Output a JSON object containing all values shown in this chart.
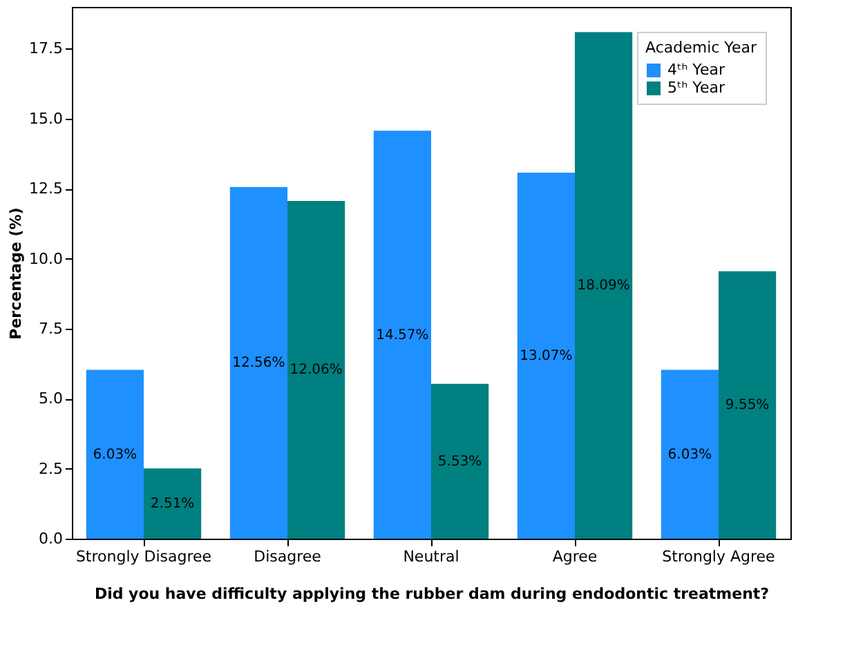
{
  "chart_data": {
    "type": "bar",
    "xlabel": "Did you have difficulty applying the rubber dam during endodontic treatment?",
    "ylabel": "Percentage (%)",
    "legend_title": "Academic Year",
    "legend": "top right",
    "grid": false,
    "categories": [
      "Strongly Disagree",
      "Disagree",
      "Neutral",
      "Agree",
      "Strongly Agree"
    ],
    "series": [
      {
        "name": "4ᵗʰ Year",
        "color": "#1e90ff",
        "values": [
          6.03,
          12.56,
          14.57,
          13.07,
          6.03
        ],
        "value_labels": [
          "6.03%",
          "12.56%",
          "14.57%",
          "13.07%",
          "6.03%"
        ]
      },
      {
        "name": "5ᵗʰ Year",
        "color": "#008080",
        "values": [
          2.51,
          12.06,
          5.53,
          18.09,
          9.55
        ],
        "value_labels": [
          "2.51%",
          "12.06%",
          "5.53%",
          "18.09%",
          "9.55%"
        ]
      }
    ],
    "ylim": [
      0,
      18.99
    ],
    "yticks": [
      {
        "value": 0,
        "label": "0.0"
      },
      {
        "value": 2.5,
        "label": "2.5"
      },
      {
        "value": 5,
        "label": "5.0"
      },
      {
        "value": 7.5,
        "label": "7.5"
      },
      {
        "value": 10,
        "label": "10.0"
      },
      {
        "value": 12.5,
        "label": "12.5"
      },
      {
        "value": 15,
        "label": "15.0"
      },
      {
        "value": 17.5,
        "label": "17.5"
      }
    ]
  }
}
